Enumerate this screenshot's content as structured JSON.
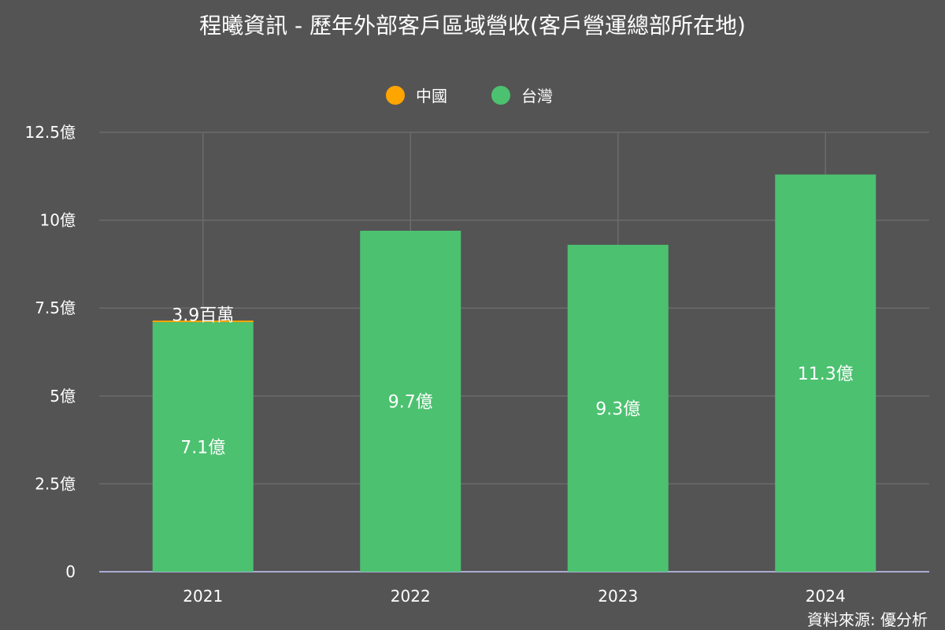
{
  "chart_data": {
    "type": "bar",
    "stacked": true,
    "title": "程曦資訊 - 歷年外部客戶區域營收(客戶營運總部所在地)",
    "xlabel": "",
    "ylabel": "",
    "categories": [
      "2021",
      "2022",
      "2023",
      "2024"
    ],
    "series": [
      {
        "name": "台灣",
        "color": "#4cc170",
        "values": [
          7.1,
          9.7,
          9.3,
          11.3
        ],
        "labels": [
          "7.1億",
          "9.7億",
          "9.3億",
          "11.3億"
        ]
      },
      {
        "name": "中國",
        "color": "#ffa500",
        "values": [
          0.039,
          0,
          0,
          0
        ],
        "labels": [
          "3.9百萬",
          "",
          "",
          ""
        ]
      }
    ],
    "ylim": [
      0,
      12.5
    ],
    "yticks": [
      0,
      2.5,
      5,
      7.5,
      10,
      12.5
    ],
    "ytick_labels": [
      "0",
      "2.5億",
      "5億",
      "7.5億",
      "10億",
      "12.5億"
    ],
    "legend": {
      "position": "top-center",
      "items": [
        "中國",
        "台灣"
      ]
    },
    "grid": true,
    "source": "資料來源: 優分析"
  },
  "colors": {
    "background": "#545454",
    "grid": "#6b6b6b",
    "baseline": "#c8c8ff",
    "text": "#ffffff"
  }
}
